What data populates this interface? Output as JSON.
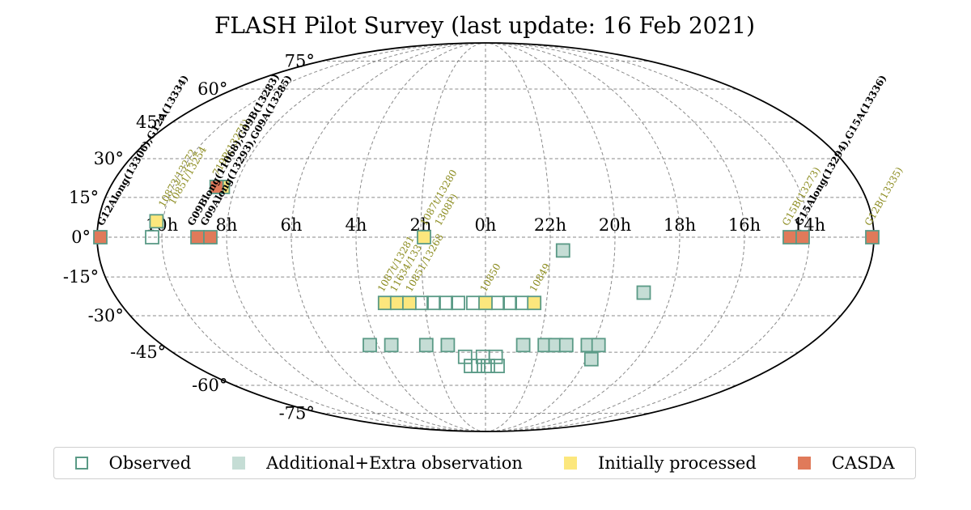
{
  "chart_data": {
    "type": "scatter",
    "title": "FLASH Pilot Survey (last update: 16 Feb 2021)",
    "projection": "Mollweide (all-sky), RA increasing to the left",
    "x_ticks": [
      "10h",
      "8h",
      "6h",
      "4h",
      "2h",
      "0h",
      "22h",
      "20h",
      "18h",
      "16h",
      "14h"
    ],
    "y_ticks": [
      "75°",
      "60°",
      "45°",
      "30°",
      "15°",
      "0°",
      "-15°",
      "-30°",
      "-45°",
      "-60°",
      "-75°"
    ],
    "grid": true,
    "legend_position": "bottom",
    "colors": {
      "observed_edge": "#5a9a86",
      "additional_fill": "#c5ddd5",
      "initially_processed_fill": "#fce77d",
      "casda_fill": "#e07a5a",
      "label_olive": "#8b8b1e",
      "label_black": "#000000"
    },
    "legend": [
      {
        "key": "observed",
        "label": "Observed"
      },
      {
        "key": "additional",
        "label": "Additional+Extra observation"
      },
      {
        "key": "initial",
        "label": "Initially processed"
      },
      {
        "key": "casda",
        "label": "CASDA"
      }
    ],
    "series": [
      {
        "name": "Observed",
        "points": [
          {
            "ra": 10.3,
            "dec": 0
          },
          {
            "ra": 0.1,
            "dec": -47
          },
          {
            "ra": 0.8,
            "dec": -47
          },
          {
            "ra": 23.6,
            "dec": -47
          },
          {
            "ra": 0.6,
            "dec": -51
          },
          {
            "ra": 0.3,
            "dec": -51
          },
          {
            "ra": 23.9,
            "dec": -51
          },
          {
            "ra": 23.5,
            "dec": -51
          },
          {
            "ra": 2.1,
            "dec": -25
          },
          {
            "ra": 1.7,
            "dec": -25
          },
          {
            "ra": 1.3,
            "dec": -25
          },
          {
            "ra": 0.9,
            "dec": -25
          },
          {
            "ra": 0.4,
            "dec": -25
          },
          {
            "ra": 23.6,
            "dec": -25
          },
          {
            "ra": 23.2,
            "dec": -25
          },
          {
            "ra": 22.8,
            "dec": -25
          }
        ]
      },
      {
        "name": "Additional+Extra observation",
        "points": [
          {
            "ra": 21.6,
            "dec": -5
          },
          {
            "ra": 18.9,
            "dec": -21
          },
          {
            "ra": 4.3,
            "dec": -42
          },
          {
            "ra": 3.5,
            "dec": -42
          },
          {
            "ra": 2.2,
            "dec": -42
          },
          {
            "ra": 1.4,
            "dec": -42
          },
          {
            "ra": 22.6,
            "dec": -42
          },
          {
            "ra": 21.8,
            "dec": -42
          },
          {
            "ra": 21.4,
            "dec": -42
          },
          {
            "ra": 21.0,
            "dec": -42
          },
          {
            "ra": 20.2,
            "dec": -42
          },
          {
            "ra": 19.8,
            "dec": -42
          },
          {
            "ra": 19.8,
            "dec": -48
          }
        ]
      },
      {
        "name": "Initially processed",
        "points": [
          {
            "ra": 10.2,
            "dec": 6
          },
          {
            "ra": 8.4,
            "dec": 19
          },
          {
            "ra": 1.9,
            "dec": 0
          },
          {
            "ra": 3.3,
            "dec": -25
          },
          {
            "ra": 2.9,
            "dec": -25
          },
          {
            "ra": 2.5,
            "dec": -25
          },
          {
            "ra": 0.0,
            "dec": -25
          },
          {
            "ra": 22.4,
            "dec": -25
          }
        ]
      },
      {
        "name": "CASDA",
        "points": [
          {
            "ra": 11.9,
            "dec": 0
          },
          {
            "ra": 8.9,
            "dec": 0
          },
          {
            "ra": 8.5,
            "dec": 0
          },
          {
            "ra": 8.6,
            "dec": 19
          },
          {
            "ra": 14.6,
            "dec": 0
          },
          {
            "ra": 14.2,
            "dec": 0
          },
          {
            "ra": 12.05,
            "dec": 0
          }
        ]
      }
    ],
    "annotations": [
      {
        "text": "G12Along(13306),G12A(13334)",
        "ra": 11.85,
        "dec": 4,
        "color": "black",
        "bold": true
      },
      {
        "text": "10873/13272",
        "ra": 10.05,
        "dec": 11,
        "color": "olive"
      },
      {
        "text": "10851/13254",
        "ra": 9.75,
        "dec": 12,
        "color": "olive"
      },
      {
        "text": "719P(13271)",
        "ra": 8.7,
        "dec": 23,
        "color": "olive"
      },
      {
        "text": "G09Blong(11068),G09B(13283)",
        "ra": 9.05,
        "dec": 4,
        "color": "black",
        "bold": true
      },
      {
        "text": "G09Along(13293),G09A(13285)",
        "ra": 8.65,
        "dec": 4,
        "color": "black",
        "bold": true
      },
      {
        "text": "1087t/13280",
        "ra": 1.85,
        "dec": 4,
        "color": "olive"
      },
      {
        "text": "1308P)",
        "ra": 1.4,
        "dec": 4,
        "color": "olive"
      },
      {
        "text": "1087t/13281",
        "ra": 3.3,
        "dec": -21,
        "color": "olive"
      },
      {
        "text": "11634/133",
        "ra": 2.9,
        "dec": -21,
        "color": "olive"
      },
      {
        "text": "10851/13268",
        "ra": 2.4,
        "dec": -21,
        "color": "olive"
      },
      {
        "text": "10850",
        "ra": 0.0,
        "dec": -21,
        "color": "olive"
      },
      {
        "text": "10849",
        "ra": 22.4,
        "dec": -21,
        "color": "olive"
      },
      {
        "text": "G15B(13273)",
        "ra": 14.65,
        "dec": 4,
        "color": "olive"
      },
      {
        "text": "G15Along(13294),G15A(13336)",
        "ra": 14.25,
        "dec": 4,
        "color": "black",
        "bold": true
      },
      {
        "text": "G12B(13335)",
        "ra": 12.1,
        "dec": 4,
        "color": "olive"
      }
    ]
  }
}
